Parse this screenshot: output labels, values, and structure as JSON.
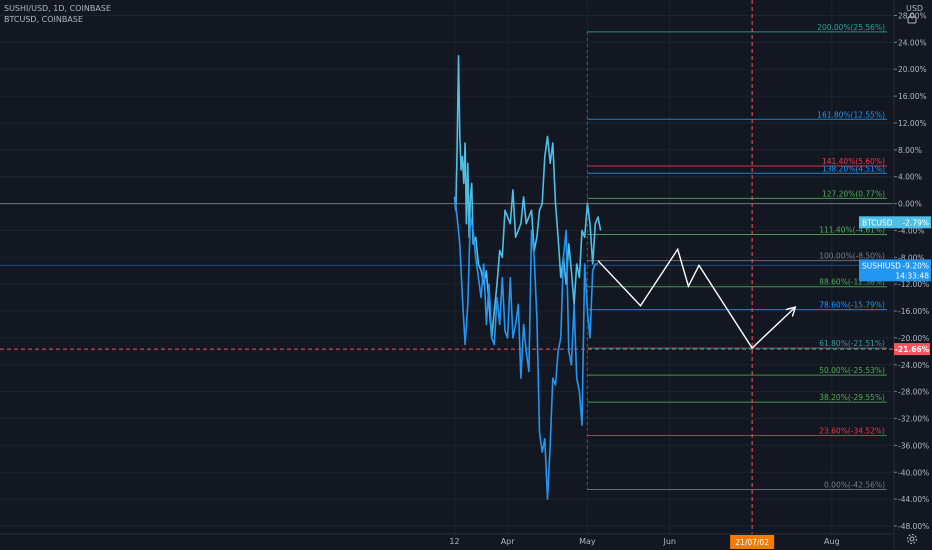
{
  "legend": {
    "main_symbol": "SUSHI/USD, 1D, COINBASE",
    "compare_symbol": "BTCUSD, COINBASE"
  },
  "header": {
    "currency_label": "USD",
    "lock_icon": "lock-icon"
  },
  "colors": {
    "background": "#131722",
    "sushi_line": "#2196f3",
    "btc_line": "#4dc0e8",
    "projection": "#ffffff",
    "crosshair": "#f7525f",
    "zero_line": "#9598a1"
  },
  "chart_data": {
    "type": "line",
    "title": "SUSHI/USD, 1D, COINBASE",
    "ylabel": "USD",
    "xlabel": "",
    "ylim": [
      -48,
      28
    ],
    "y_unit": "%",
    "y_ticks": [
      "28.00%",
      "24.00%",
      "20.00%",
      "16.00%",
      "12.00%",
      "8.00%",
      "4.00%",
      "0.00%",
      "-4.00%",
      "-8.00%",
      "-12.00%",
      "-16.00%",
      "-20.00%",
      "-24.00%",
      "-28.00%",
      "-32.00%",
      "-36.00%",
      "-40.00%",
      "-44.00%",
      "-48.00%"
    ],
    "y_tick_values": [
      28,
      24,
      20,
      16,
      12,
      8,
      4,
      0,
      -4,
      -8,
      -12,
      -16,
      -20,
      -24,
      -28,
      -32,
      -36,
      -40,
      -44,
      -48
    ],
    "x_ticks": [
      {
        "label": "12",
        "day": 0
      },
      {
        "label": "Apr",
        "day": 20
      },
      {
        "label": "May",
        "day": 50
      },
      {
        "label": "Jun",
        "day": 81
      },
      {
        "label": "Aug",
        "day": 142
      }
    ],
    "xlim_days": [
      -171,
      165
    ],
    "series": [
      {
        "name": "BTCUSD",
        "color": "#4dc0e8",
        "x_days": [
          0,
          0.5,
          1,
          1.5,
          2,
          2.5,
          3,
          3.5,
          4,
          4.5,
          5,
          5.5,
          6,
          6.5,
          7,
          8,
          9,
          10,
          11,
          12,
          13,
          14,
          15,
          16,
          17,
          18,
          19,
          20,
          21,
          22,
          23,
          24,
          25,
          26,
          27,
          28,
          29,
          30,
          31,
          32,
          33,
          34,
          35,
          36,
          37,
          38,
          39,
          40,
          41,
          42,
          43,
          44,
          45,
          46,
          47,
          48,
          49,
          50,
          51,
          52,
          53,
          54,
          55
        ],
        "values": [
          1,
          -1,
          8,
          22,
          10,
          5,
          7,
          3,
          9,
          -3,
          6,
          -5,
          1,
          3,
          -6,
          -5,
          -9,
          -10,
          -12,
          -10,
          -15,
          -20,
          -16,
          -12,
          -7,
          -8,
          -1,
          -2,
          -3,
          2,
          -5,
          -4,
          -3,
          1,
          -3,
          -2,
          -1,
          -7,
          -5,
          -1,
          0,
          7,
          10,
          6,
          9,
          0,
          -5,
          -11,
          -8,
          -12,
          -6,
          -10,
          -15,
          -9,
          -11,
          -4,
          -5,
          0,
          -3,
          -9,
          -3,
          -2,
          -4
        ]
      },
      {
        "name": "SUSHIUSD",
        "color": "#2196f3",
        "x_days": [
          0,
          1,
          2,
          3,
          4,
          5,
          6,
          7,
          8,
          9,
          10,
          11,
          12,
          13,
          14,
          15,
          16,
          17,
          18,
          19,
          20,
          21,
          22,
          23,
          24,
          25,
          26,
          27,
          28,
          29,
          30,
          31,
          32,
          33,
          34,
          35,
          36,
          37,
          38,
          39,
          40,
          41,
          42,
          43,
          44,
          45,
          46,
          47,
          48,
          49,
          50,
          51,
          52,
          53,
          54
        ],
        "values": [
          1,
          -2,
          -6,
          -14,
          -21,
          -15,
          -2,
          -4,
          -8,
          -11,
          -14,
          -9,
          -18,
          -12,
          -20,
          -21,
          -14,
          -18,
          -11,
          -19,
          -20,
          -11,
          -20,
          -18,
          -15,
          -26,
          -18,
          -22,
          -25,
          -4,
          -8,
          -17,
          -34,
          -37,
          -35,
          -44,
          -36,
          -26,
          -27,
          -22,
          -20,
          -8,
          -4,
          -22,
          -24,
          -15,
          -26,
          -28,
          -33,
          -9,
          -16,
          -20,
          -10,
          -9,
          -9
        ]
      }
    ],
    "projection_path": {
      "x_days": [
        54,
        70,
        84,
        88,
        92,
        112,
        128
      ],
      "values": [
        -8.5,
        -15.2,
        -6.8,
        -12.3,
        -9.2,
        -21.5,
        -15.5
      ]
    },
    "fib_levels": [
      {
        "label": "200.00%(25.56%)",
        "value": 25.56,
        "color": "#26a69a"
      },
      {
        "label": "161.80%(12.55%)",
        "value": 12.55,
        "color": "#2196f3"
      },
      {
        "label": "141.40%(5.60%)",
        "value": 5.6,
        "color": "#f23645"
      },
      {
        "label": "138.20%(4.51%)",
        "value": 4.51,
        "color": "#2196f3"
      },
      {
        "label": "127.20%(0.77%)",
        "value": 0.77,
        "color": "#4caf50"
      },
      {
        "label": "111.40%(-4.61%)",
        "value": -4.61,
        "color": "#4caf50"
      },
      {
        "label": "100.00%(-8.50%)",
        "value": -8.5,
        "color": "#787b86"
      },
      {
        "label": "88.60%(-12.38%)",
        "value": -12.38,
        "color": "#4caf50"
      },
      {
        "label": "78.60%(-15.79%)",
        "value": -15.79,
        "color": "#2196f3"
      },
      {
        "label": "61.80%(-21.51%)",
        "value": -21.51,
        "color": "#26a69a"
      },
      {
        "label": "50.00%(-25.53%)",
        "value": -25.53,
        "color": "#4caf50"
      },
      {
        "label": "38.20%(-29.55%)",
        "value": -29.55,
        "color": "#4caf50"
      },
      {
        "label": "23.60%(-34.52%)",
        "value": -34.52,
        "color": "#f23645"
      },
      {
        "label": "0.00%(-42.56%)",
        "value": -42.56,
        "color": "#787b86"
      }
    ],
    "fib_start_day": 50,
    "crosshair": {
      "y_value": -21.66,
      "y_label": "-21.66%",
      "x_day": 112,
      "x_label": "21/07/02"
    },
    "price_labels": [
      {
        "name": "BTCUSD",
        "value": -2.79,
        "text": "-2.79%",
        "color": "#4dc0e8"
      },
      {
        "name": "SUSHIUSD",
        "value": -9.2,
        "text": "-9.20%",
        "sub": "14:33:48",
        "color": "#2196f3"
      }
    ],
    "zero_line": 0
  }
}
